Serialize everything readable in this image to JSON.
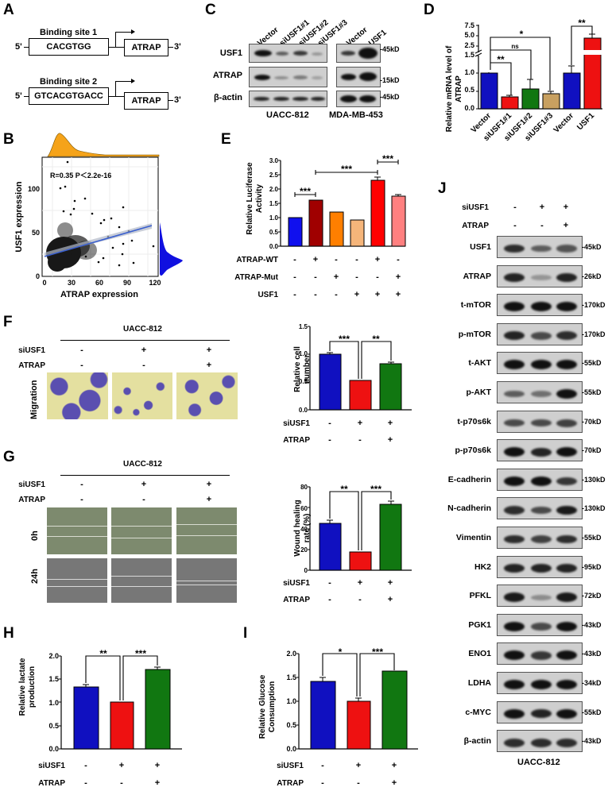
{
  "panel_labels": [
    "A",
    "B",
    "C",
    "D",
    "E",
    "F",
    "G",
    "H",
    "I",
    "J"
  ],
  "panelA": {
    "sites": [
      {
        "title": "Binding site 1",
        "seq": "CACGTGG",
        "gene": "ATRAP",
        "five": "5'",
        "three": "3'"
      },
      {
        "title": "Binding site 2",
        "seq": "GTCACGTGACC",
        "gene": "ATRAP",
        "five": "5'",
        "three": "3'"
      }
    ]
  },
  "panelC": {
    "lanes_left": [
      "Vector",
      "siUSF1#1",
      "siUSF1#2",
      "siUSF1#3"
    ],
    "lanes_right": [
      "Vector",
      "USF1"
    ],
    "rows": [
      {
        "label": "USF1",
        "kd": "-45kD"
      },
      {
        "label": "ATRAP",
        "kd": "-15kD"
      },
      {
        "label": "β-actin",
        "kd": "-45kD"
      }
    ],
    "cell_left": "UACC-812",
    "cell_right": "MDA-MB-453"
  },
  "chart_data": [
    {
      "panel": "B",
      "type": "scatter",
      "xlabel": "ATRAP expression",
      "ylabel": "USF1 expression",
      "xticks": [
        "0",
        "30",
        "60",
        "90",
        "120"
      ],
      "yticks": [
        "0",
        "50",
        "100"
      ],
      "annotation": "R=0.35   P＜2.2e-16",
      "xlim": [
        0,
        120
      ],
      "ylim": [
        0,
        130
      ],
      "fit_line": {
        "x": [
          3,
          117
        ],
        "y": [
          21,
          56
        ]
      },
      "grid": true,
      "marginal_colors": {
        "top": "#f5a31a",
        "right": "#1010e0"
      }
    },
    {
      "panel": "D",
      "type": "bar",
      "categories": [
        "Vector",
        "siUSF1#1",
        "siUSF1#2",
        "siUSF1#3",
        "Vector",
        "USF1"
      ],
      "values": [
        1.0,
        0.33,
        0.55,
        0.42,
        1.0,
        4.8
      ],
      "errors": [
        0.02,
        0.04,
        0.25,
        0.06,
        0.18,
        0.6
      ],
      "colors": [
        "#1010c0",
        "#ee1111",
        "#117711",
        "#c8a060",
        "#1010c0",
        "#ee1111"
      ],
      "ylabel": "Relative mRNA level of ATRAP",
      "yticks_lower": [
        "0.0",
        "0.5",
        "1.0",
        "1.5"
      ],
      "yticks_upper": [
        "2.5",
        "5.0",
        "7.5"
      ],
      "axis_break": true,
      "significance": [
        {
          "pair": [
            0,
            1
          ],
          "label": "**"
        },
        {
          "pair": [
            0,
            2
          ],
          "label": "ns"
        },
        {
          "pair": [
            0,
            3
          ],
          "label": "*"
        },
        {
          "pair": [
            4,
            5
          ],
          "label": "**"
        }
      ]
    },
    {
      "panel": "E",
      "type": "bar",
      "categories": [
        "1",
        "2",
        "3",
        "4",
        "5",
        "6"
      ],
      "values": [
        1.0,
        1.62,
        1.2,
        0.93,
        2.3,
        1.74
      ],
      "errors": [
        0.02,
        0.03,
        0.02,
        0.02,
        0.12,
        0.05
      ],
      "colors": [
        "#1010ee",
        "#a00000",
        "#ff7f00",
        "#f5b57a",
        "#ff0000",
        "#ff8080"
      ],
      "ylabel": "Relative Luciferase Activity",
      "yticks": [
        "0.0",
        "0.5",
        "1.0",
        "1.5",
        "2.0",
        "2.5",
        "3.0"
      ],
      "ylim": [
        0,
        3
      ],
      "conditions": [
        {
          "name": "ATRAP-WT",
          "values": [
            "-",
            "+",
            "-",
            "-",
            "+",
            "-"
          ]
        },
        {
          "name": "ATRAP-Mut",
          "values": [
            "-",
            "-",
            "+",
            "-",
            "-",
            "+"
          ]
        },
        {
          "name": "USF1",
          "values": [
            "-",
            "-",
            "-",
            "+",
            "+",
            "+"
          ]
        }
      ],
      "significance": [
        {
          "pair": [
            0,
            1
          ],
          "label": "***"
        },
        {
          "pair": [
            1,
            4
          ],
          "label": "***"
        },
        {
          "pair": [
            4,
            5
          ],
          "label": "***"
        }
      ]
    },
    {
      "panel": "F",
      "type": "bar",
      "values": [
        1.0,
        0.53,
        0.82
      ],
      "errors": [
        0.03,
        0.02,
        0.03
      ],
      "colors": [
        "#1010c0",
        "#ee1111",
        "#117711"
      ],
      "ylabel": "Relative cell number",
      "yticks": [
        "0.0",
        "0.5",
        "1.0",
        "1.5"
      ],
      "ylim": [
        0,
        1.5
      ],
      "conditions": [
        {
          "name": "siUSF1",
          "values": [
            "-",
            "+",
            "+"
          ]
        },
        {
          "name": "ATRAP",
          "values": [
            "-",
            "-",
            "+"
          ]
        }
      ],
      "significance": [
        {
          "pair": [
            0,
            1
          ],
          "label": "***"
        },
        {
          "pair": [
            1,
            2
          ],
          "label": "**"
        }
      ]
    },
    {
      "panel": "G",
      "type": "bar",
      "values": [
        45,
        18,
        63
      ],
      "errors": [
        3,
        1,
        3
      ],
      "colors": [
        "#1010c0",
        "#ee1111",
        "#117711"
      ],
      "ylabel": "Wound healing rate (%)",
      "yticks": [
        "0",
        "20",
        "40",
        "60",
        "80"
      ],
      "ylim": [
        0,
        80
      ],
      "conditions": [
        {
          "name": "siUSF1",
          "values": [
            "-",
            "+",
            "+"
          ]
        },
        {
          "name": "ATRAP",
          "values": [
            "-",
            "-",
            "+"
          ]
        }
      ],
      "significance": [
        {
          "pair": [
            0,
            1
          ],
          "label": "**"
        },
        {
          "pair": [
            1,
            2
          ],
          "label": "***"
        }
      ]
    },
    {
      "panel": "H",
      "type": "bar",
      "values": [
        1.33,
        1.0,
        1.7
      ],
      "errors": [
        0.05,
        0.02,
        0.05
      ],
      "colors": [
        "#1010c0",
        "#ee1111",
        "#117711"
      ],
      "ylabel": "Relative lactate production",
      "yticks": [
        "0.0",
        "0.5",
        "1.0",
        "1.5",
        "2.0"
      ],
      "ylim": [
        0,
        2
      ],
      "conditions": [
        {
          "name": "siUSF1",
          "values": [
            "-",
            "+",
            "+"
          ]
        },
        {
          "name": "ATRAP",
          "values": [
            "-",
            "-",
            "+"
          ]
        }
      ],
      "significance": [
        {
          "pair": [
            0,
            1
          ],
          "label": "**"
        },
        {
          "pair": [
            1,
            2
          ],
          "label": "***"
        }
      ]
    },
    {
      "panel": "I",
      "type": "bar",
      "values": [
        1.42,
        1.0,
        1.63
      ],
      "errors": [
        0.08,
        0.06,
        0.01
      ],
      "colors": [
        "#1010c0",
        "#ee1111",
        "#117711"
      ],
      "ylabel": "Relative Glucose Consumption",
      "yticks": [
        "0.0",
        "0.5",
        "1.0",
        "1.5",
        "2.0"
      ],
      "ylim": [
        0,
        2
      ],
      "conditions": [
        {
          "name": "siUSF1",
          "values": [
            "-",
            "+",
            "+"
          ]
        },
        {
          "name": "ATRAP",
          "values": [
            "-",
            "-",
            "+"
          ]
        }
      ],
      "significance": [
        {
          "pair": [
            0,
            1
          ],
          "label": "*"
        },
        {
          "pair": [
            1,
            2
          ],
          "label": "***"
        }
      ]
    }
  ],
  "panelF": {
    "cell": "UACC-812",
    "row_label": "Migration",
    "cond1": "siUSF1",
    "cond2": "ATRAP",
    "signs1": [
      "-",
      "+",
      "+"
    ],
    "signs2": [
      "-",
      "-",
      "+"
    ]
  },
  "panelG": {
    "cell": "UACC-812",
    "rows": [
      "0h",
      "24h"
    ],
    "cond1": "siUSF1",
    "cond2": "ATRAP",
    "signs1": [
      "-",
      "+",
      "+"
    ],
    "signs2": [
      "-",
      "-",
      "+"
    ]
  },
  "panelJ": {
    "cond1": "siUSF1",
    "cond2": "ATRAP",
    "signs1": [
      "-",
      "+",
      "+"
    ],
    "signs2": [
      "-",
      "-",
      "+"
    ],
    "rows": [
      {
        "label": "USF1",
        "kd": "-45kD"
      },
      {
        "label": "ATRAP",
        "kd": "-26kD"
      },
      {
        "label": "t-mTOR",
        "kd": "-170kD"
      },
      {
        "label": "p-mTOR",
        "kd": "-170kD"
      },
      {
        "label": "t-AKT",
        "kd": "-55kD"
      },
      {
        "label": "p-AKT",
        "kd": "-55kD"
      },
      {
        "label": "t-p70s6k",
        "kd": "-70kD"
      },
      {
        "label": "p-p70s6k",
        "kd": "-70kD"
      },
      {
        "label": "E-cadherin",
        "kd": "-130kD"
      },
      {
        "label": "N-cadherin",
        "kd": "-130kD"
      },
      {
        "label": "Vimentin",
        "kd": "-55kD"
      },
      {
        "label": "HK2",
        "kd": "-95kD"
      },
      {
        "label": "PFKL",
        "kd": "-72kD"
      },
      {
        "label": "PGK1",
        "kd": "-43kD"
      },
      {
        "label": "ENO1",
        "kd": "-43kD"
      },
      {
        "label": "LDHA",
        "kd": "-34kD"
      },
      {
        "label": "c-MYC",
        "kd": "-55kD"
      },
      {
        "label": "β-actin",
        "kd": "-43kD"
      }
    ],
    "cell": "UACC-812"
  }
}
